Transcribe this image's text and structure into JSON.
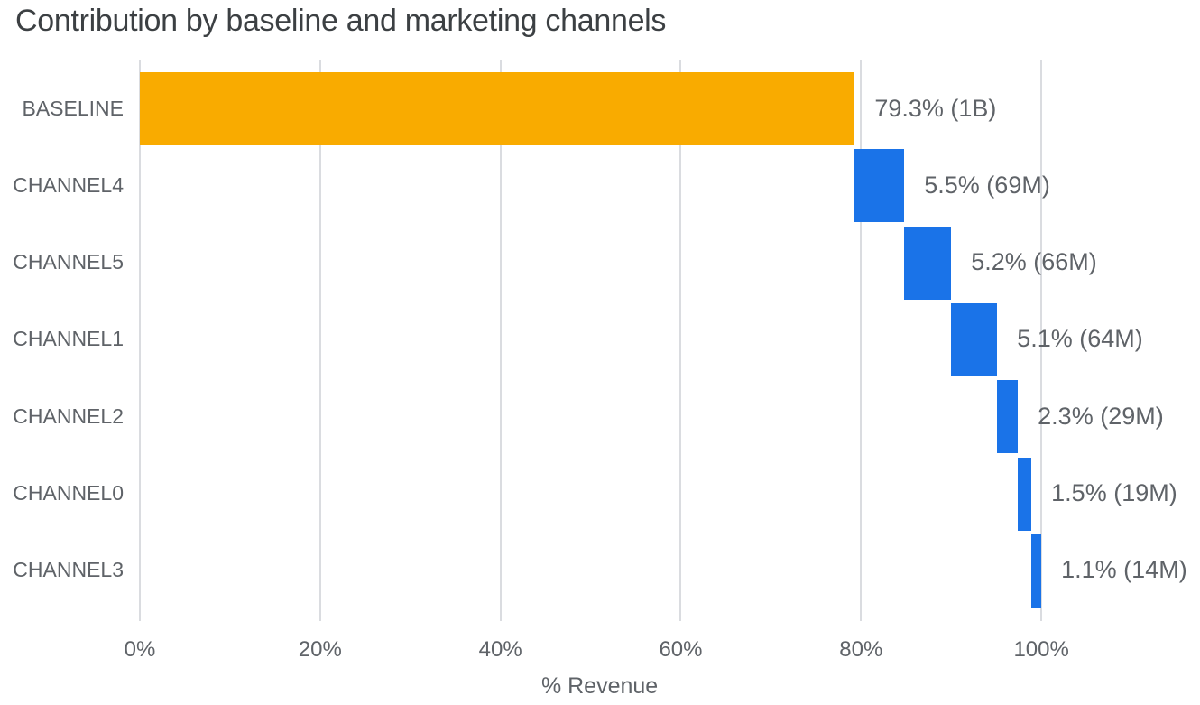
{
  "title": "Contribution by baseline and marketing channels",
  "chart_data": {
    "type": "bar",
    "subtype": "waterfall-horizontal",
    "title": "Contribution by baseline and marketing channels",
    "xlabel": "% Revenue",
    "ylabel": "",
    "xlim": [
      0,
      117.6
    ],
    "grid": "vertical-only",
    "legend": "none",
    "categories": [
      "BASELINE",
      "CHANNEL4",
      "CHANNEL5",
      "CHANNEL1",
      "CHANNEL2",
      "CHANNEL0",
      "CHANNEL3"
    ],
    "items": [
      {
        "category": "BASELINE",
        "start": 0,
        "value": 79.3,
        "label": "79.3% (1B)",
        "color": "#f9ab00"
      },
      {
        "category": "CHANNEL4",
        "start": 79.3,
        "value": 5.5,
        "label": "5.5% (69M)",
        "color": "#1a73e8"
      },
      {
        "category": "CHANNEL5",
        "start": 84.8,
        "value": 5.2,
        "label": "5.2% (66M)",
        "color": "#1a73e8"
      },
      {
        "category": "CHANNEL1",
        "start": 90.0,
        "value": 5.1,
        "label": "5.1% (64M)",
        "color": "#1a73e8"
      },
      {
        "category": "CHANNEL2",
        "start": 95.1,
        "value": 2.3,
        "label": "2.3% (29M)",
        "color": "#1a73e8"
      },
      {
        "category": "CHANNEL0",
        "start": 97.4,
        "value": 1.5,
        "label": "1.5% (19M)",
        "color": "#1a73e8"
      },
      {
        "category": "CHANNEL3",
        "start": 98.9,
        "value": 1.1,
        "label": "1.1% (14M)",
        "color": "#1a73e8"
      }
    ],
    "x_ticks": [
      {
        "value": 0,
        "label": "0%"
      },
      {
        "value": 20,
        "label": "20%"
      },
      {
        "value": 40,
        "label": "40%"
      },
      {
        "value": 60,
        "label": "60%"
      },
      {
        "value": 80,
        "label": "80%"
      },
      {
        "value": 100,
        "label": "100%"
      }
    ],
    "colors": {
      "baseline_bar": "#f9ab00",
      "channel_bar": "#1a73e8",
      "gridline": "#dadce0",
      "label_text": "#5f6368",
      "title_text": "#3c4043"
    }
  }
}
